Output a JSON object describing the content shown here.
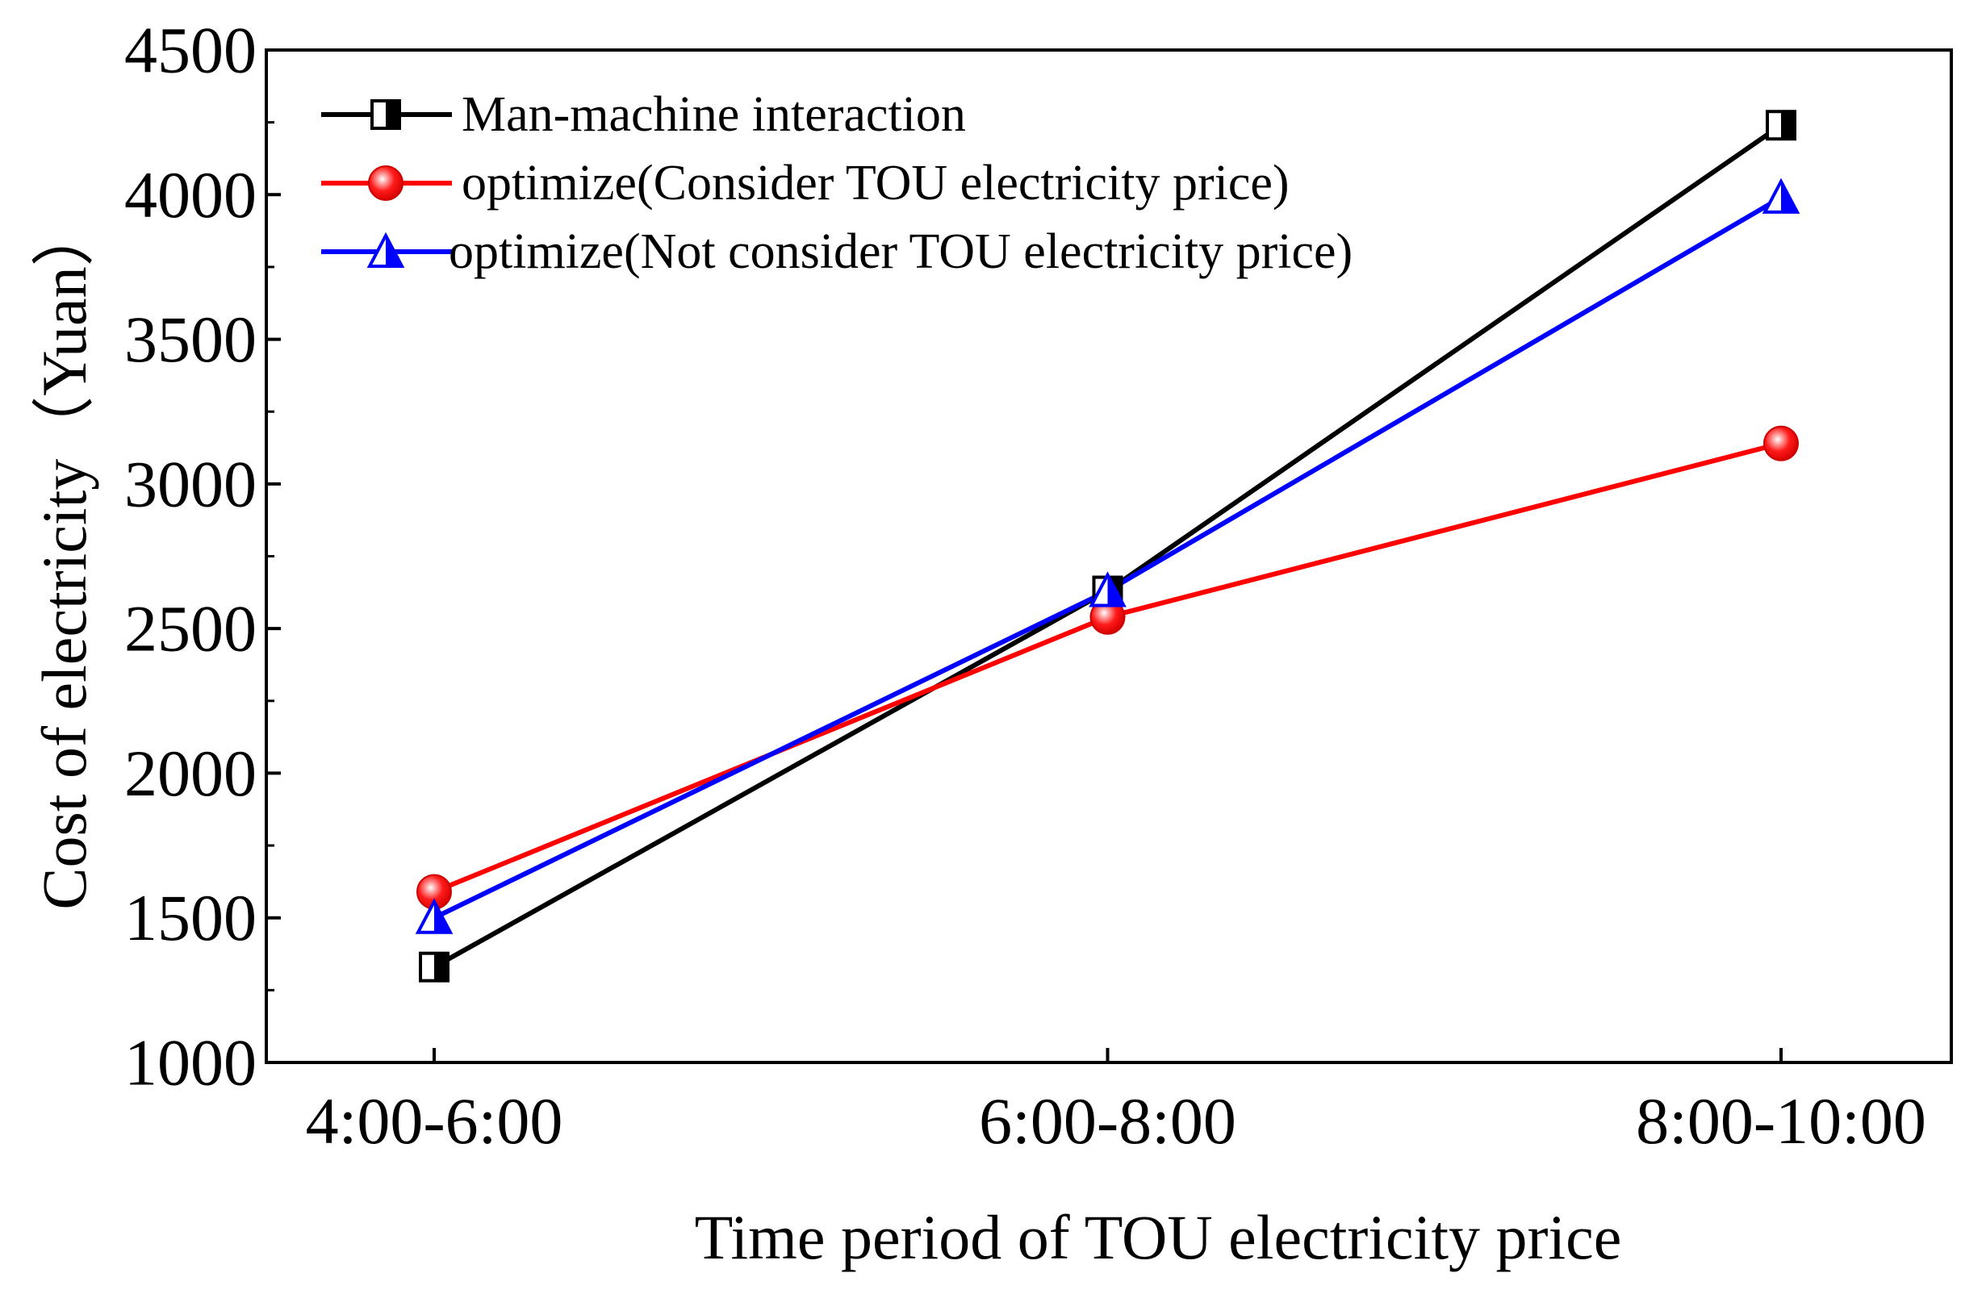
{
  "chart_data": {
    "type": "line",
    "title": "",
    "xlabel": "Time period of TOU electricity price",
    "ylabel": "Cost of electricity（Yuan）",
    "categories": [
      "4:00-6:00",
      "6:00-8:00",
      "8:00-10:00"
    ],
    "ylim": [
      1000,
      4500
    ],
    "yticks": [
      1000,
      1500,
      2000,
      2500,
      3000,
      3500,
      4000,
      4500
    ],
    "ytick_labels": [
      "1000",
      "1500",
      "2000",
      "2500",
      "3000",
      "3500",
      "4000",
      "4500"
    ],
    "grid": false,
    "legend": "top-left",
    "series": [
      {
        "name": "Man-machine interaction",
        "values": [
          1330,
          2630,
          4240
        ],
        "color": "#000000",
        "marker": "half-filled-square"
      },
      {
        "name": "optimize(Consider TOU electricity price)",
        "values": [
          1590,
          2540,
          3140
        ],
        "color": "#ff0000",
        "marker": "sphere"
      },
      {
        "name": "optimize(Not consider TOU electricity price)",
        "values": [
          1500,
          2630,
          3990
        ],
        "color": "#0000ff",
        "marker": "half-filled-triangle"
      }
    ]
  }
}
